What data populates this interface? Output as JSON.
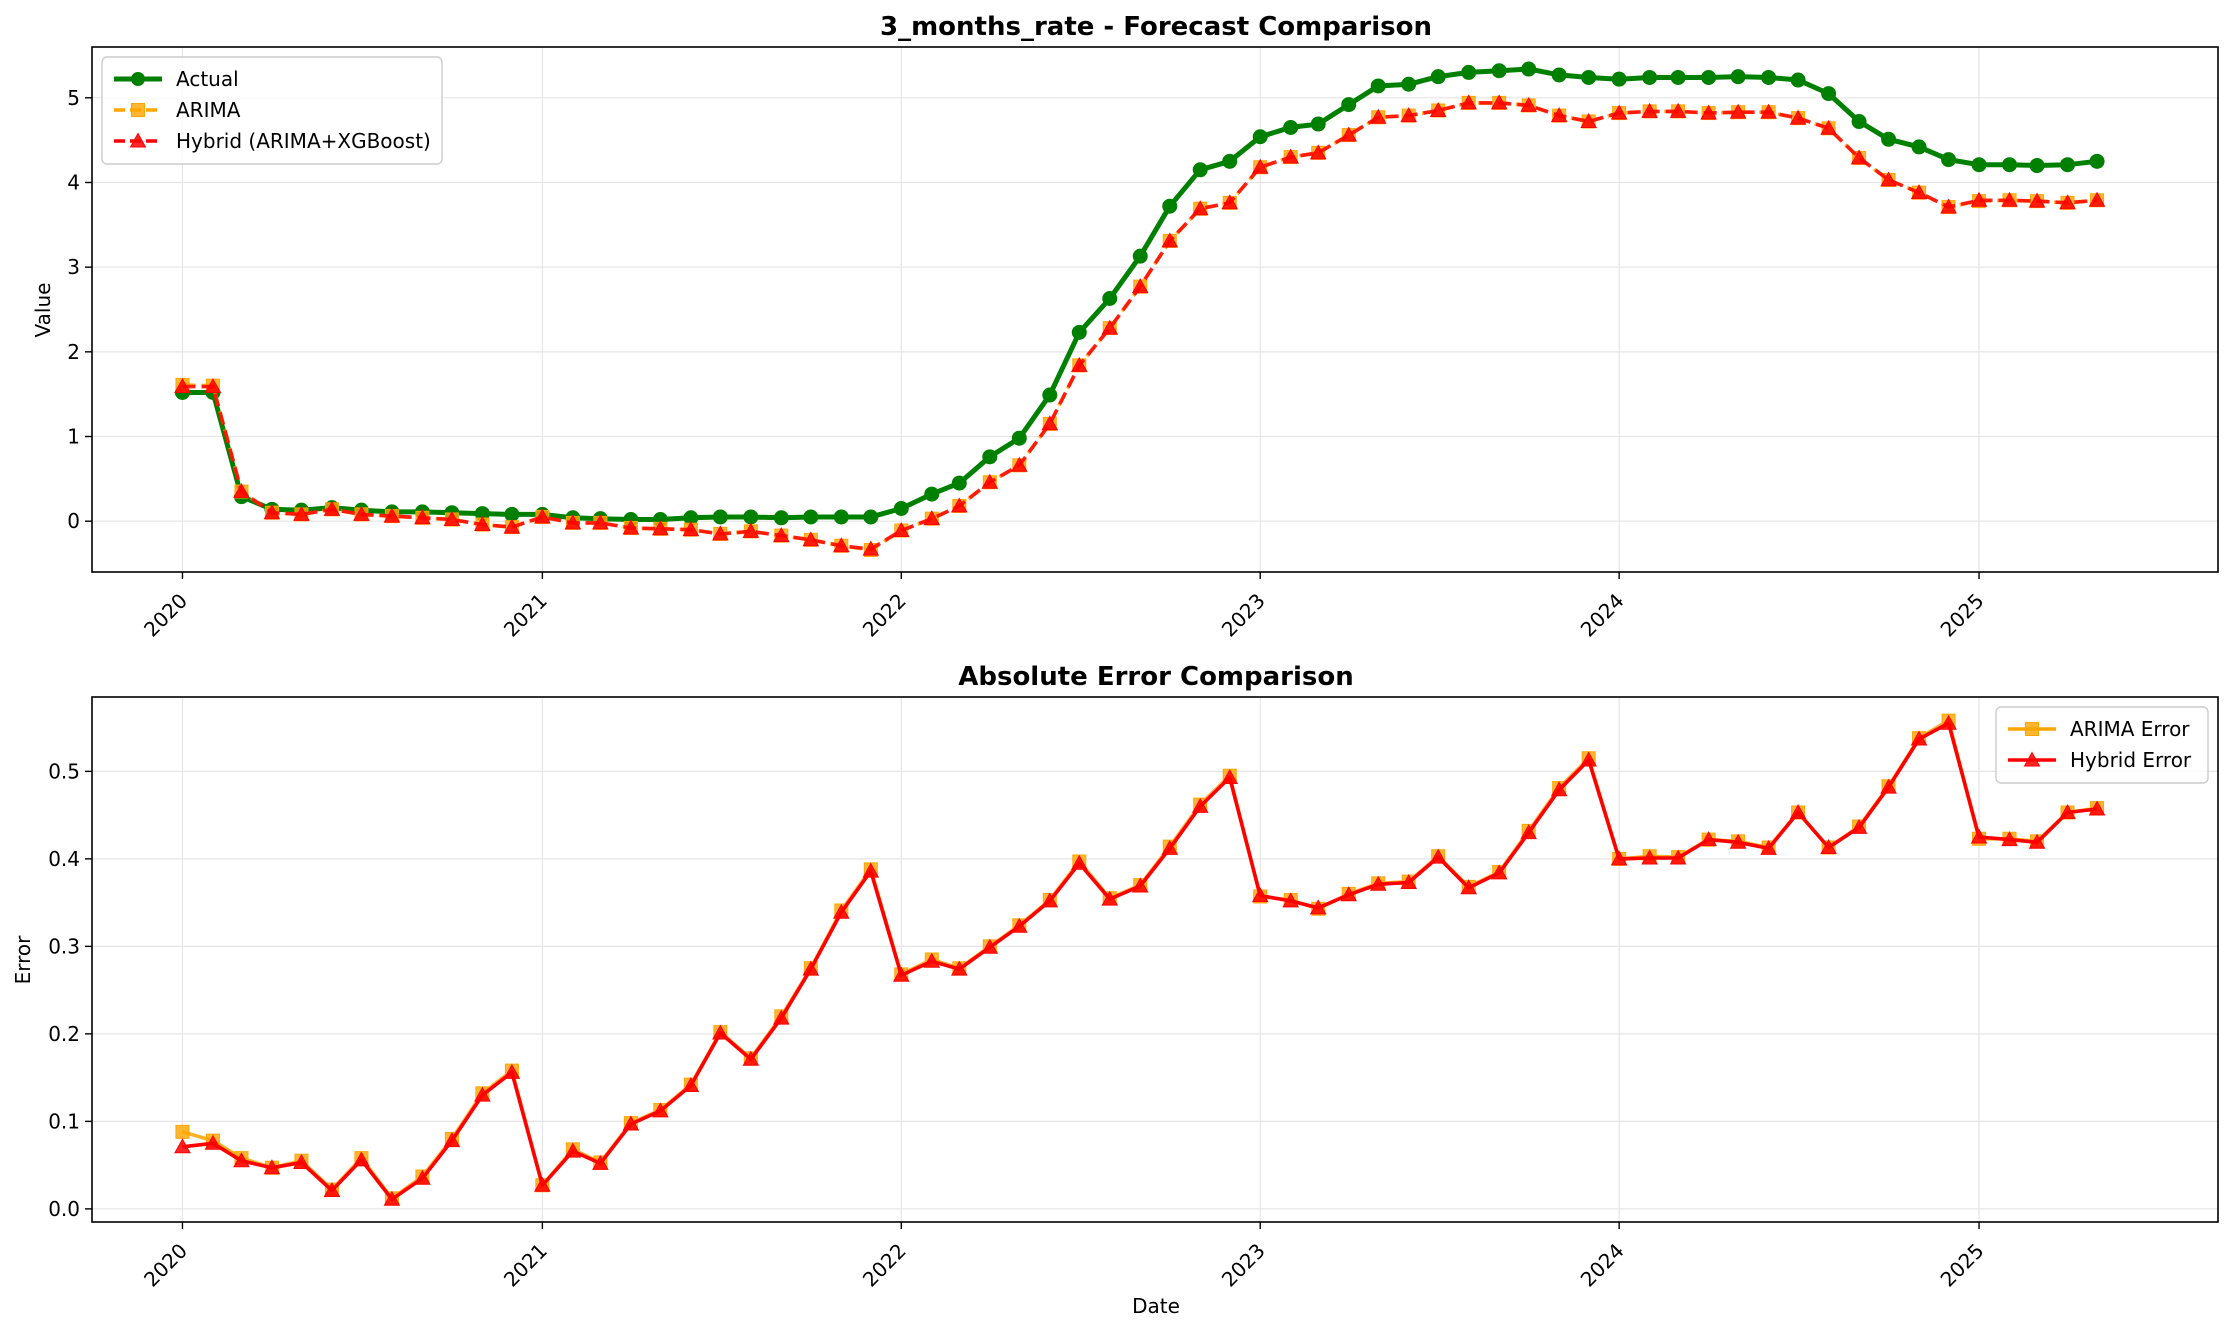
{
  "colors": {
    "actual": "#008000",
    "arima": "#FFA500",
    "hybrid": "#FF0000",
    "grid": "#e5e5e5",
    "axes": "#000000"
  },
  "chart_data": [
    {
      "type": "line",
      "title": "3_months_rate - Forecast Comparison",
      "xlabel": "",
      "ylabel": "Value",
      "xlim": [
        "2019-10-01",
        "2025-09-01"
      ],
      "ylim": [
        -0.6,
        5.6
      ],
      "yticks": [
        "0",
        "1",
        "2",
        "3",
        "4",
        "5"
      ],
      "xticks": [
        "2020",
        "2021",
        "2022",
        "2023",
        "2024",
        "2025"
      ],
      "grid": true,
      "legend": "top-left",
      "x": [
        "2020-01",
        "2020-02",
        "2020-03",
        "2020-04",
        "2020-05",
        "2020-06",
        "2020-07",
        "2020-08",
        "2020-09",
        "2020-10",
        "2020-11",
        "2020-12",
        "2021-01",
        "2021-02",
        "2021-03",
        "2021-04",
        "2021-05",
        "2021-06",
        "2021-07",
        "2021-08",
        "2021-09",
        "2021-10",
        "2021-11",
        "2021-12",
        "2022-01",
        "2022-02",
        "2022-03",
        "2022-04",
        "2022-05",
        "2022-06",
        "2022-07",
        "2022-08",
        "2022-09",
        "2022-10",
        "2022-11",
        "2022-12",
        "2023-01",
        "2023-02",
        "2023-03",
        "2023-04",
        "2023-05",
        "2023-06",
        "2023-07",
        "2023-08",
        "2023-09",
        "2023-10",
        "2023-11",
        "2023-12",
        "2024-01",
        "2024-02",
        "2024-03",
        "2024-04",
        "2024-05",
        "2024-06",
        "2024-07",
        "2024-08",
        "2024-09",
        "2024-10",
        "2024-11",
        "2024-12",
        "2025-01",
        "2025-02",
        "2025-03",
        "2025-04",
        "2025-05"
      ],
      "series": [
        {
          "name": "Actual",
          "color": "#008000",
          "style": "solid",
          "marker": "circle",
          "values": [
            1.52,
            1.52,
            0.29,
            0.14,
            0.13,
            0.16,
            0.13,
            0.11,
            0.11,
            0.1,
            0.09,
            0.08,
            0.08,
            0.04,
            0.03,
            0.02,
            0.02,
            0.04,
            0.05,
            0.05,
            0.04,
            0.05,
            0.05,
            0.05,
            0.15,
            0.32,
            0.45,
            0.76,
            0.98,
            1.49,
            2.23,
            2.63,
            3.13,
            3.72,
            4.15,
            4.25,
            4.54,
            4.65,
            4.69,
            4.92,
            5.14,
            5.16,
            5.25,
            5.3,
            5.32,
            5.34,
            5.27,
            5.24,
            5.22,
            5.24,
            5.24,
            5.24,
            5.25,
            5.24,
            5.21,
            5.05,
            4.72,
            4.51,
            4.42,
            4.27,
            4.21,
            4.21,
            4.2,
            4.21,
            4.25
          ]
        },
        {
          "name": "ARIMA",
          "color": "#FFA500",
          "style": "dashed",
          "marker": "square",
          "values": [
            1.61,
            1.6,
            0.35,
            0.1,
            0.08,
            0.14,
            0.08,
            0.06,
            0.04,
            0.02,
            -0.04,
            -0.07,
            0.05,
            -0.02,
            -0.02,
            -0.08,
            -0.09,
            -0.1,
            -0.15,
            -0.12,
            -0.17,
            -0.22,
            -0.29,
            -0.34,
            -0.11,
            0.03,
            0.18,
            0.46,
            0.66,
            1.15,
            1.84,
            2.28,
            2.77,
            3.31,
            3.69,
            3.76,
            4.18,
            4.3,
            4.35,
            4.56,
            4.77,
            4.79,
            4.85,
            4.94,
            4.94,
            4.91,
            4.79,
            4.72,
            4.82,
            4.84,
            4.84,
            4.82,
            4.83,
            4.83,
            4.76,
            4.64,
            4.29,
            4.03,
            3.88,
            3.71,
            3.78,
            3.79,
            3.78,
            3.76,
            3.79
          ]
        },
        {
          "name": "Hybrid (ARIMA+XGBoost)",
          "color": "#FF0000",
          "style": "dashed",
          "marker": "triangle",
          "values": [
            1.59,
            1.59,
            0.35,
            0.1,
            0.08,
            0.14,
            0.08,
            0.06,
            0.04,
            0.02,
            -0.04,
            -0.07,
            0.05,
            -0.02,
            -0.02,
            -0.08,
            -0.09,
            -0.1,
            -0.15,
            -0.12,
            -0.17,
            -0.22,
            -0.29,
            -0.33,
            -0.11,
            0.03,
            0.18,
            0.46,
            0.66,
            1.15,
            1.84,
            2.28,
            2.77,
            3.31,
            3.69,
            3.76,
            4.18,
            4.3,
            4.35,
            4.56,
            4.77,
            4.79,
            4.85,
            4.94,
            4.94,
            4.91,
            4.79,
            4.72,
            4.82,
            4.84,
            4.84,
            4.82,
            4.83,
            4.83,
            4.76,
            4.64,
            4.29,
            4.03,
            3.88,
            3.71,
            3.79,
            3.79,
            3.78,
            3.76,
            3.79
          ]
        }
      ]
    },
    {
      "type": "line",
      "title": "Absolute Error Comparison",
      "xlabel": "Date",
      "ylabel": "Error",
      "xlim": [
        "2019-10-01",
        "2025-09-01"
      ],
      "ylim": [
        -0.015,
        0.585
      ],
      "yticks": [
        "0.0",
        "0.1",
        "0.2",
        "0.3",
        "0.4",
        "0.5"
      ],
      "xticks": [
        "2020",
        "2021",
        "2022",
        "2023",
        "2024",
        "2025"
      ],
      "grid": true,
      "legend": "top-right",
      "x": [
        "2020-01",
        "2020-02",
        "2020-03",
        "2020-04",
        "2020-05",
        "2020-06",
        "2020-07",
        "2020-08",
        "2020-09",
        "2020-10",
        "2020-11",
        "2020-12",
        "2021-01",
        "2021-02",
        "2021-03",
        "2021-04",
        "2021-05",
        "2021-06",
        "2021-07",
        "2021-08",
        "2021-09",
        "2021-10",
        "2021-11",
        "2021-12",
        "2022-01",
        "2022-02",
        "2022-03",
        "2022-04",
        "2022-05",
        "2022-06",
        "2022-07",
        "2022-08",
        "2022-09",
        "2022-10",
        "2022-11",
        "2022-12",
        "2023-01",
        "2023-02",
        "2023-03",
        "2023-04",
        "2023-05",
        "2023-06",
        "2023-07",
        "2023-08",
        "2023-09",
        "2023-10",
        "2023-11",
        "2023-12",
        "2024-01",
        "2024-02",
        "2024-03",
        "2024-04",
        "2024-05",
        "2024-06",
        "2024-07",
        "2024-08",
        "2024-09",
        "2024-10",
        "2024-11",
        "2024-12",
        "2025-01",
        "2025-02",
        "2025-03",
        "2025-04",
        "2025-05"
      ],
      "series": [
        {
          "name": "ARIMA Error",
          "color": "#FFA500",
          "style": "solid",
          "marker": "square",
          "values": [
            0.088,
            0.078,
            0.058,
            0.047,
            0.055,
            0.022,
            0.058,
            0.012,
            0.037,
            0.08,
            0.132,
            0.158,
            0.027,
            0.068,
            0.053,
            0.098,
            0.113,
            0.142,
            0.202,
            0.172,
            0.22,
            0.275,
            0.341,
            0.388,
            0.268,
            0.285,
            0.275,
            0.3,
            0.324,
            0.353,
            0.397,
            0.355,
            0.37,
            0.414,
            0.462,
            0.495,
            0.357,
            0.353,
            0.343,
            0.36,
            0.372,
            0.374,
            0.403,
            0.368,
            0.385,
            0.432,
            0.481,
            0.515,
            0.4,
            0.403,
            0.402,
            0.422,
            0.42,
            0.413,
            0.453,
            0.413,
            0.437,
            0.483,
            0.538,
            0.558,
            0.423,
            0.423,
            0.42,
            0.453,
            0.458
          ]
        },
        {
          "name": "Hybrid Error",
          "color": "#FF0000",
          "style": "solid",
          "marker": "triangle",
          "values": [
            0.071,
            0.075,
            0.055,
            0.047,
            0.053,
            0.021,
            0.056,
            0.011,
            0.035,
            0.078,
            0.13,
            0.156,
            0.027,
            0.066,
            0.052,
            0.097,
            0.112,
            0.141,
            0.201,
            0.171,
            0.218,
            0.274,
            0.339,
            0.386,
            0.267,
            0.283,
            0.274,
            0.299,
            0.323,
            0.352,
            0.395,
            0.354,
            0.369,
            0.412,
            0.46,
            0.493,
            0.358,
            0.352,
            0.344,
            0.359,
            0.371,
            0.373,
            0.402,
            0.367,
            0.384,
            0.43,
            0.479,
            0.513,
            0.4,
            0.401,
            0.401,
            0.422,
            0.419,
            0.412,
            0.453,
            0.413,
            0.436,
            0.482,
            0.537,
            0.555,
            0.425,
            0.422,
            0.419,
            0.453,
            0.457
          ]
        }
      ]
    }
  ]
}
